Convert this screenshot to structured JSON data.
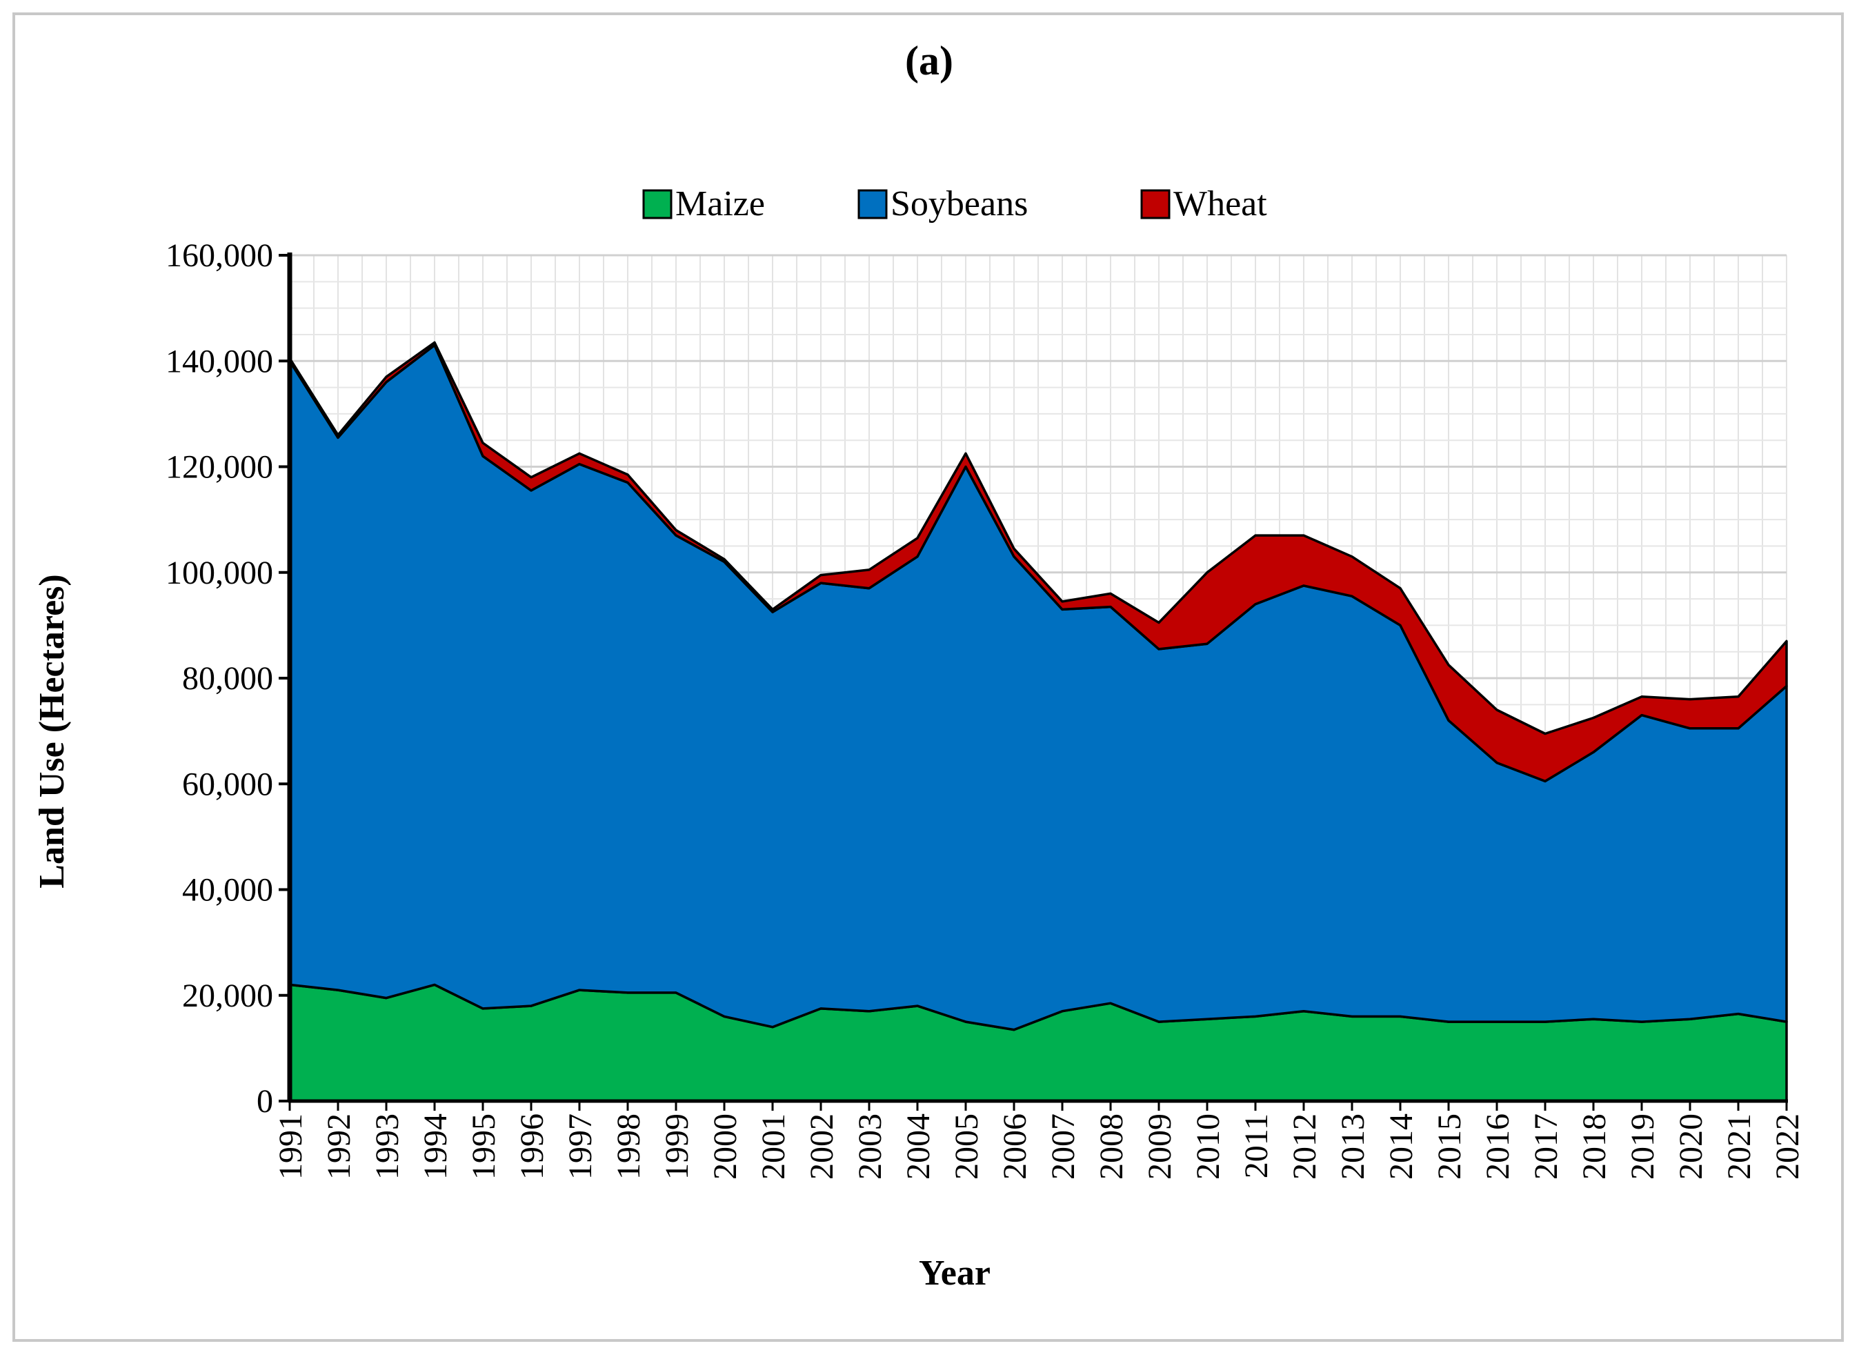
{
  "chart_data": {
    "type": "area",
    "stacked": true,
    "title": "(a)",
    "xlabel": "Year",
    "ylabel": "Land Use (Hectares)",
    "ylim": [
      0,
      160000
    ],
    "yticks": [
      0,
      20000,
      40000,
      60000,
      80000,
      100000,
      120000,
      140000,
      160000
    ],
    "ytick_labels": [
      "0",
      "20,000",
      "40,000",
      "60,000",
      "80,000",
      "100,000",
      "120,000",
      "140,000",
      "160,000"
    ],
    "grid": true,
    "legend_position": "top-center",
    "categories": [
      "1991",
      "1992",
      "1993",
      "1994",
      "1995",
      "1996",
      "1997",
      "1998",
      "1999",
      "2000",
      "2001",
      "2002",
      "2003",
      "2004",
      "2005",
      "2006",
      "2007",
      "2008",
      "2009",
      "2010",
      "2011",
      "2012",
      "2013",
      "2014",
      "2015",
      "2016",
      "2017",
      "2018",
      "2019",
      "2020",
      "2021",
      "2022"
    ],
    "series": [
      {
        "name": "Maize",
        "color": "#00b050",
        "values": [
          22000,
          21000,
          19500,
          22000,
          17500,
          18000,
          21000,
          20500,
          20500,
          16000,
          14000,
          17500,
          17000,
          18000,
          15000,
          13500,
          17000,
          18500,
          15000,
          15500,
          16000,
          17000,
          16000,
          16000,
          15000,
          15000,
          15000,
          15500,
          15000,
          15500,
          16500,
          15000
        ]
      },
      {
        "name": "Soybeans",
        "color": "#0070c0",
        "values": [
          118000,
          104500,
          116500,
          121000,
          104500,
          97500,
          99500,
          96500,
          86500,
          86000,
          78500,
          80500,
          80000,
          85000,
          105000,
          89500,
          76000,
          75000,
          70500,
          71000,
          78000,
          80500,
          79500,
          74000,
          57000,
          49000,
          45500,
          50500,
          58000,
          55000,
          54000,
          63500
        ]
      },
      {
        "name": "Wheat",
        "color": "#c00000",
        "values": [
          500,
          500,
          1000,
          500,
          2500,
          2500,
          2000,
          1500,
          1000,
          500,
          500,
          1500,
          3500,
          3500,
          2500,
          1500,
          1500,
          2500,
          5000,
          13500,
          13000,
          9500,
          7500,
          7000,
          10500,
          10000,
          9000,
          6500,
          3500,
          5500,
          6000,
          8500
        ]
      }
    ]
  }
}
